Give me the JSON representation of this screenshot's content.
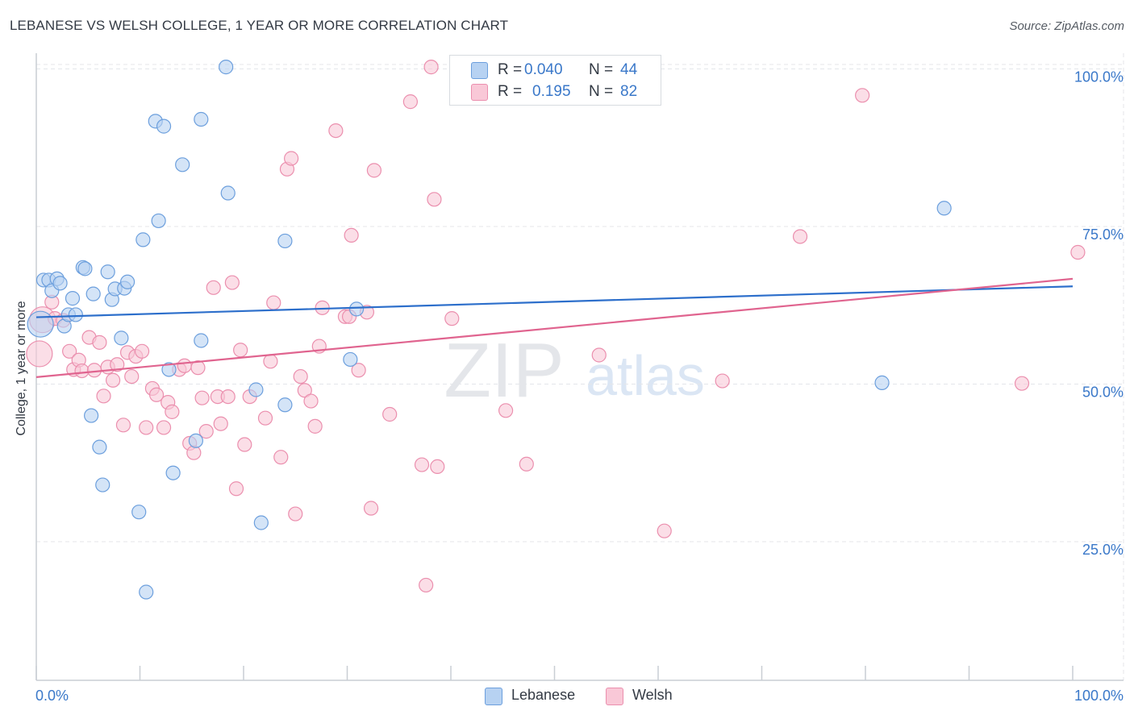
{
  "title": "LEBANESE VS WELSH COLLEGE, 1 YEAR OR MORE CORRELATION CHART",
  "source": "Source: ZipAtlas.com",
  "watermark": {
    "zip": "ZIP",
    "atlas": "atlas"
  },
  "colors": {
    "lebanese_fill": "#b7d2f2",
    "lebanese_stroke": "#6c9fdd",
    "lebanese_line": "#2d6fcb",
    "welsh_fill": "#f9c8d7",
    "welsh_stroke": "#eb8fae",
    "welsh_line": "#e0648f",
    "tick_label": "#3a78c9",
    "grid": "#e4e6ea"
  },
  "legend_top": {
    "lebanese": {
      "r_label": "R =",
      "r_value": "0.040",
      "n_label": "N =",
      "n_value": "44"
    },
    "welsh": {
      "r_label": "R =",
      "r_value": "0.195",
      "n_label": "N =",
      "n_value": "82"
    }
  },
  "legend_bottom": {
    "lebanese": "Lebanese",
    "welsh": "Welsh"
  },
  "chart_data": {
    "type": "scatter",
    "title": "LEBANESE VS WELSH COLLEGE, 1 YEAR OR MORE CORRELATION CHART",
    "xlabel": "",
    "ylabel": "College, 1 year or more",
    "xlim": [
      0,
      100
    ],
    "ylim": [
      3,
      103
    ],
    "x_tick_labels": [
      "0.0%",
      "100.0%"
    ],
    "y_ticks": [
      {
        "value": 25,
        "label": "25.0%"
      },
      {
        "value": 50,
        "label": "50.0%"
      },
      {
        "value": 75,
        "label": "75.0%"
      },
      {
        "value": 100,
        "label": "100.0%"
      }
    ],
    "series": [
      {
        "name": "Lebanese",
        "r": 0.04,
        "n": 44,
        "trend": {
          "x": [
            0,
            100
          ],
          "y": [
            60.6,
            65.5
          ]
        },
        "points": [
          {
            "x": 0.4,
            "y": 59.5,
            "big": true
          },
          {
            "x": 0.7,
            "y": 66.5
          },
          {
            "x": 1.2,
            "y": 66.5
          },
          {
            "x": 1.5,
            "y": 64.8
          },
          {
            "x": 2.0,
            "y": 66.7
          },
          {
            "x": 2.3,
            "y": 66.0
          },
          {
            "x": 2.7,
            "y": 59.2
          },
          {
            "x": 3.1,
            "y": 61.0
          },
          {
            "x": 3.5,
            "y": 63.6
          },
          {
            "x": 3.8,
            "y": 61.0
          },
          {
            "x": 4.5,
            "y": 68.5
          },
          {
            "x": 4.7,
            "y": 68.3
          },
          {
            "x": 5.5,
            "y": 64.3
          },
          {
            "x": 5.3,
            "y": 45.0
          },
          {
            "x": 6.1,
            "y": 40.0
          },
          {
            "x": 6.4,
            "y": 34.0
          },
          {
            "x": 6.9,
            "y": 67.8
          },
          {
            "x": 7.3,
            "y": 63.4
          },
          {
            "x": 7.6,
            "y": 65.1
          },
          {
            "x": 8.2,
            "y": 57.3
          },
          {
            "x": 8.5,
            "y": 65.2
          },
          {
            "x": 8.8,
            "y": 66.2
          },
          {
            "x": 9.9,
            "y": 29.7
          },
          {
            "x": 10.3,
            "y": 72.9
          },
          {
            "x": 10.6,
            "y": 17.0
          },
          {
            "x": 11.5,
            "y": 91.7
          },
          {
            "x": 11.8,
            "y": 75.9
          },
          {
            "x": 12.3,
            "y": 90.9
          },
          {
            "x": 12.8,
            "y": 52.3
          },
          {
            "x": 13.2,
            "y": 35.9
          },
          {
            "x": 14.1,
            "y": 84.8
          },
          {
            "x": 15.4,
            "y": 41.0
          },
          {
            "x": 15.9,
            "y": 56.9
          },
          {
            "x": 15.9,
            "y": 92.0
          },
          {
            "x": 18.3,
            "y": 100.3
          },
          {
            "x": 18.5,
            "y": 80.3
          },
          {
            "x": 21.2,
            "y": 49.1
          },
          {
            "x": 21.7,
            "y": 28.0
          },
          {
            "x": 24.0,
            "y": 46.7
          },
          {
            "x": 24.0,
            "y": 72.7
          },
          {
            "x": 30.3,
            "y": 53.9
          },
          {
            "x": 30.9,
            "y": 61.9
          },
          {
            "x": 81.6,
            "y": 50.2
          },
          {
            "x": 87.6,
            "y": 77.9
          }
        ]
      },
      {
        "name": "Welsh",
        "r": 0.195,
        "n": 82,
        "trend": {
          "x": [
            0,
            100
          ],
          "y": [
            51.1,
            66.7
          ]
        },
        "points": [
          {
            "x": 0.3,
            "y": 54.8,
            "big": true
          },
          {
            "x": 0.6,
            "y": 60.2,
            "big": true
          },
          {
            "x": 1.5,
            "y": 63.0
          },
          {
            "x": 1.8,
            "y": 60.4
          },
          {
            "x": 2.6,
            "y": 60.1
          },
          {
            "x": 3.2,
            "y": 55.2
          },
          {
            "x": 3.6,
            "y": 52.3
          },
          {
            "x": 4.1,
            "y": 53.8
          },
          {
            "x": 4.4,
            "y": 52.1
          },
          {
            "x": 5.1,
            "y": 57.4
          },
          {
            "x": 5.6,
            "y": 52.2
          },
          {
            "x": 6.1,
            "y": 56.6
          },
          {
            "x": 6.5,
            "y": 48.1
          },
          {
            "x": 6.9,
            "y": 52.7
          },
          {
            "x": 7.4,
            "y": 50.6
          },
          {
            "x": 7.8,
            "y": 53.1
          },
          {
            "x": 8.4,
            "y": 43.5
          },
          {
            "x": 8.8,
            "y": 55.0
          },
          {
            "x": 9.2,
            "y": 51.2
          },
          {
            "x": 9.6,
            "y": 54.4
          },
          {
            "x": 10.2,
            "y": 55.2
          },
          {
            "x": 10.6,
            "y": 43.1
          },
          {
            "x": 11.2,
            "y": 49.3
          },
          {
            "x": 11.6,
            "y": 48.3
          },
          {
            "x": 12.3,
            "y": 43.1
          },
          {
            "x": 12.7,
            "y": 47.1
          },
          {
            "x": 13.1,
            "y": 45.6
          },
          {
            "x": 13.8,
            "y": 52.3
          },
          {
            "x": 14.3,
            "y": 52.9
          },
          {
            "x": 14.8,
            "y": 40.6
          },
          {
            "x": 15.2,
            "y": 39.1
          },
          {
            "x": 15.6,
            "y": 52.6
          },
          {
            "x": 16.0,
            "y": 47.8
          },
          {
            "x": 16.4,
            "y": 42.5
          },
          {
            "x": 17.1,
            "y": 65.3
          },
          {
            "x": 17.5,
            "y": 48.0
          },
          {
            "x": 17.8,
            "y": 43.7
          },
          {
            "x": 18.5,
            "y": 48.0
          },
          {
            "x": 18.9,
            "y": 66.1
          },
          {
            "x": 19.3,
            "y": 33.4
          },
          {
            "x": 19.7,
            "y": 55.4
          },
          {
            "x": 20.1,
            "y": 40.4
          },
          {
            "x": 20.6,
            "y": 48.0
          },
          {
            "x": 22.1,
            "y": 44.6
          },
          {
            "x": 22.6,
            "y": 53.6
          },
          {
            "x": 22.9,
            "y": 62.9
          },
          {
            "x": 23.6,
            "y": 38.4
          },
          {
            "x": 24.2,
            "y": 84.1
          },
          {
            "x": 24.6,
            "y": 85.8
          },
          {
            "x": 25.0,
            "y": 29.4
          },
          {
            "x": 25.5,
            "y": 51.2
          },
          {
            "x": 25.9,
            "y": 49.0
          },
          {
            "x": 26.5,
            "y": 47.3
          },
          {
            "x": 26.9,
            "y": 43.3
          },
          {
            "x": 27.3,
            "y": 56.0
          },
          {
            "x": 27.6,
            "y": 62.1
          },
          {
            "x": 28.9,
            "y": 90.2
          },
          {
            "x": 29.8,
            "y": 60.7
          },
          {
            "x": 30.2,
            "y": 60.7
          },
          {
            "x": 30.4,
            "y": 73.6
          },
          {
            "x": 31.1,
            "y": 52.2
          },
          {
            "x": 31.9,
            "y": 61.4
          },
          {
            "x": 32.3,
            "y": 30.3
          },
          {
            "x": 32.6,
            "y": 83.9
          },
          {
            "x": 34.1,
            "y": 45.2
          },
          {
            "x": 36.1,
            "y": 94.8
          },
          {
            "x": 37.2,
            "y": 37.2
          },
          {
            "x": 37.6,
            "y": 18.1
          },
          {
            "x": 38.1,
            "y": 100.3
          },
          {
            "x": 38.4,
            "y": 79.3
          },
          {
            "x": 38.7,
            "y": 36.9
          },
          {
            "x": 40.1,
            "y": 60.4
          },
          {
            "x": 41.3,
            "y": 100.3
          },
          {
            "x": 45.3,
            "y": 45.8
          },
          {
            "x": 47.3,
            "y": 37.3
          },
          {
            "x": 54.3,
            "y": 54.6
          },
          {
            "x": 60.6,
            "y": 26.7
          },
          {
            "x": 66.2,
            "y": 50.5
          },
          {
            "x": 73.7,
            "y": 73.4
          },
          {
            "x": 79.7,
            "y": 95.8
          },
          {
            "x": 95.1,
            "y": 50.1
          },
          {
            "x": 100.5,
            "y": 70.9
          }
        ]
      }
    ]
  }
}
